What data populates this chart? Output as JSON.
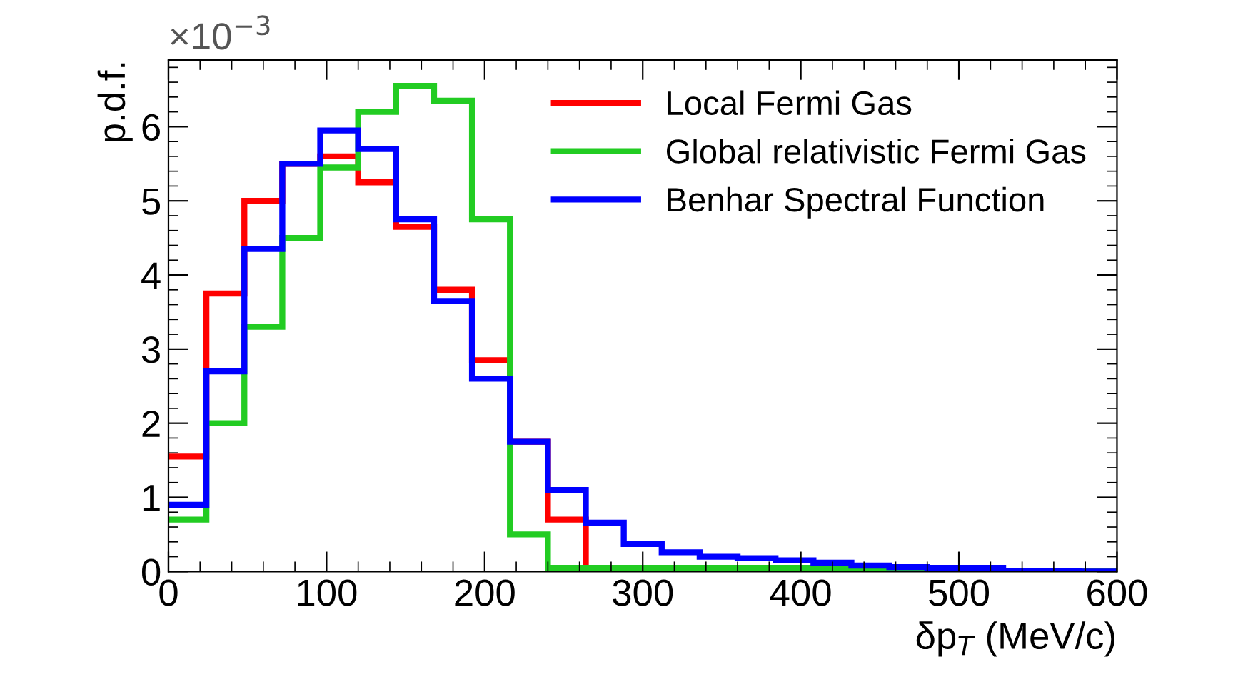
{
  "chart_data": {
    "type": "histogram",
    "xlabel": "δp$_{T}$ (MeV/c)",
    "ylabel": "p.d.f.",
    "annotations": [
      "×10$^{−3}$"
    ],
    "bins": [
      0,
      24,
      48,
      72,
      96,
      120,
      144,
      168,
      192,
      216,
      240,
      264,
      288,
      312,
      336,
      360,
      384,
      408,
      432,
      456,
      480,
      504,
      528,
      552,
      576,
      600
    ],
    "series": [
      {
        "name": "Local Fermi Gas",
        "color": "#ff0000",
        "values": [
          1.55,
          3.75,
          5.0,
          5.5,
          5.6,
          5.25,
          4.65,
          3.8,
          2.85,
          1.75,
          0.7,
          0.05,
          0.05,
          0.05,
          0.05,
          0.03,
          0.03,
          0.02,
          0.02,
          0.02,
          0.02,
          0.01,
          0.01,
          0.01,
          0.0
        ]
      },
      {
        "name": "Global relativistic Fermi Gas",
        "color": "#22cc22",
        "values": [
          0.7,
          2.0,
          3.3,
          4.5,
          5.45,
          6.2,
          6.55,
          6.35,
          4.75,
          0.5,
          0.05,
          0.05,
          0.05,
          0.05,
          0.05,
          0.05,
          0.05,
          0.03,
          0.02,
          0.02,
          0.02,
          0.01,
          0.01,
          0.01,
          0.0
        ]
      },
      {
        "name": "Benhar Spectral Function",
        "color": "#0000ff",
        "values": [
          0.9,
          2.7,
          4.35,
          5.5,
          5.95,
          5.7,
          4.75,
          3.65,
          2.6,
          1.75,
          1.1,
          0.66,
          0.37,
          0.26,
          0.2,
          0.18,
          0.15,
          0.12,
          0.08,
          0.06,
          0.05,
          0.05,
          0.01,
          0.01,
          0.0
        ]
      }
    ],
    "xlim": [
      0,
      600
    ],
    "xticks": [
      0,
      100,
      200,
      300,
      400,
      500,
      600
    ],
    "ylim": [
      0,
      6.9
    ],
    "yticks": [
      0,
      1,
      2,
      3,
      4,
      5,
      6
    ],
    "legend": "top right",
    "grid": false
  }
}
